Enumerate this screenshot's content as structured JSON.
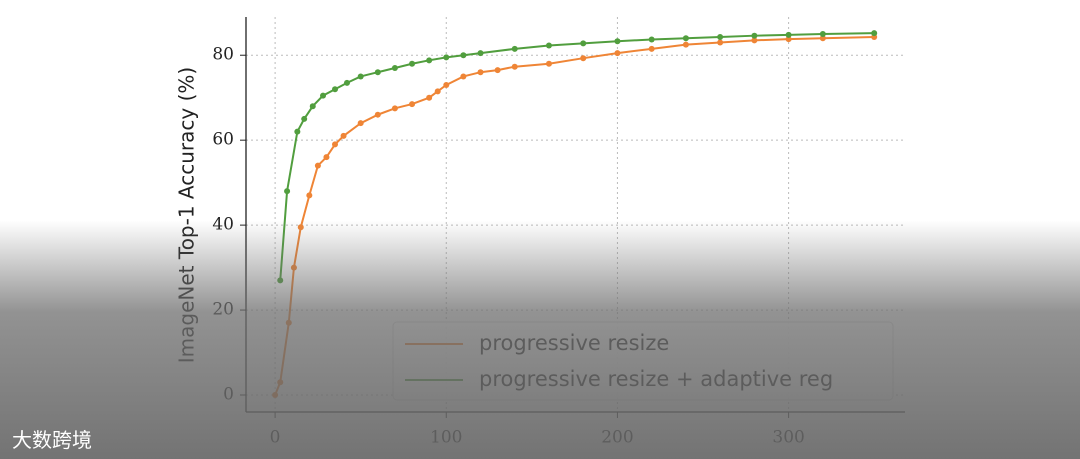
{
  "watermark": "大数跨境",
  "chart_data": {
    "type": "line",
    "y_label": "ImageNet Top-1 Accuracy (%)",
    "xlim": [
      -17,
      368
    ],
    "ylim": [
      -4,
      89
    ],
    "xticks": [
      0,
      100,
      200,
      300
    ],
    "yticks": [
      0,
      20,
      40,
      60,
      80
    ],
    "grid": true,
    "legend": "lower right",
    "series": [
      {
        "name": "progressive resize",
        "color": "#ef8536",
        "x": [
          0,
          3,
          8,
          11,
          15,
          20,
          25,
          30,
          35,
          40,
          50,
          60,
          70,
          80,
          90,
          95,
          100,
          110,
          120,
          130,
          140,
          160,
          180,
          200,
          220,
          240,
          260,
          280,
          300,
          320,
          350
        ],
        "values": [
          0,
          3,
          17,
          30,
          39.5,
          47,
          54,
          56,
          59,
          61,
          64,
          66,
          67.5,
          68.5,
          70,
          71.5,
          73,
          75,
          76,
          76.5,
          77.3,
          78,
          79.3,
          80.5,
          81.5,
          82.5,
          83,
          83.5,
          83.8,
          84,
          84.3
        ]
      },
      {
        "name": "progressive resize + adaptive reg",
        "color": "#519e3e",
        "x": [
          3,
          7,
          13,
          17,
          22,
          28,
          35,
          42,
          50,
          60,
          70,
          80,
          90,
          100,
          110,
          120,
          140,
          160,
          180,
          200,
          220,
          240,
          260,
          280,
          300,
          320,
          350
        ],
        "values": [
          27,
          48,
          62,
          65,
          68,
          70.5,
          72,
          73.5,
          75,
          76,
          77,
          78,
          78.8,
          79.5,
          80,
          80.5,
          81.5,
          82.3,
          82.8,
          83.3,
          83.7,
          84,
          84.3,
          84.6,
          84.8,
          85,
          85.2
        ]
      }
    ]
  }
}
